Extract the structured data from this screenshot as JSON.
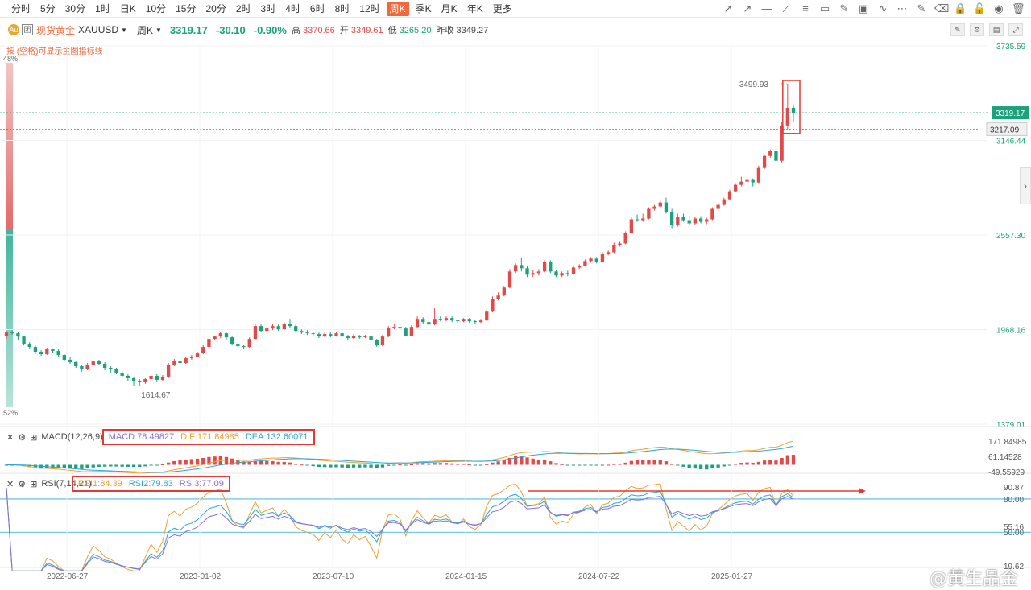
{
  "toolbar": {
    "timeframes": [
      "分时",
      "5分",
      "30分",
      "1时",
      "日K",
      "10分",
      "15分",
      "20分",
      "2时",
      "3时",
      "4时",
      "6时",
      "8时",
      "12时",
      "周K",
      "季K",
      "月K",
      "年K",
      "更多"
    ],
    "active_index": 14,
    "tools": [
      "trend-line-icon",
      "ray-icon",
      "horizontal-line-icon",
      "parallel-icon",
      "fib-icon",
      "channel-icon",
      "brush-icon",
      "image-icon",
      "compare-icon",
      "more-tools-icon",
      "edit-icon",
      "eraser-icon",
      "lock-icon",
      "unlock-icon",
      "eye-icon",
      "trash-icon"
    ]
  },
  "header": {
    "symbol_name": "现货黄金",
    "symbol_code": "XAUUSD",
    "period": "周K",
    "price": "3319.17",
    "change": "-30.10",
    "change_pct": "-0.90%",
    "high_label": "高",
    "high": "3370.66",
    "open_label": "开",
    "open": "3349.61",
    "low_label": "低",
    "low": "3265.20",
    "prev_label": "昨收",
    "prev": "3349.27",
    "hint": "按 (空格)可显示主图指标线",
    "pct_top": "48%",
    "pct_bottom": "52%"
  },
  "colors": {
    "up": "#e24a4a",
    "down": "#1aa37a",
    "accent": "#f1683a"
  },
  "chart_data": {
    "type": "candlestick",
    "x_ticks": [
      "2022-06-27",
      "2023-01-02",
      "2023-07-10",
      "2024-01-15",
      "2024-07-22",
      "2025-01-27"
    ],
    "y_ticks": [
      "3735.59",
      "3146.44",
      "2557.30",
      "1968.16",
      "1379.01"
    ],
    "ylim": [
      1379.01,
      3735.59
    ],
    "current_price": "3319.17",
    "crosshair_price": "3217.09",
    "max_label": "3499.93",
    "min_label": "1614.67",
    "candles": [
      [
        1930,
        1950,
        1910,
        1960
      ],
      [
        1950,
        1945,
        1935,
        1965
      ],
      [
        1945,
        1925,
        1905,
        1955
      ],
      [
        1925,
        1880,
        1870,
        1930
      ],
      [
        1880,
        1860,
        1845,
        1890
      ],
      [
        1860,
        1830,
        1815,
        1870
      ],
      [
        1830,
        1815,
        1805,
        1840
      ],
      [
        1815,
        1845,
        1810,
        1855
      ],
      [
        1845,
        1835,
        1825,
        1850
      ],
      [
        1835,
        1810,
        1800,
        1845
      ],
      [
        1810,
        1780,
        1770,
        1815
      ],
      [
        1780,
        1765,
        1755,
        1795
      ],
      [
        1765,
        1740,
        1730,
        1770
      ],
      [
        1740,
        1720,
        1705,
        1750
      ],
      [
        1720,
        1750,
        1715,
        1760
      ],
      [
        1750,
        1770,
        1745,
        1775
      ],
      [
        1770,
        1755,
        1745,
        1780
      ],
      [
        1755,
        1730,
        1715,
        1765
      ],
      [
        1730,
        1720,
        1700,
        1740
      ],
      [
        1720,
        1700,
        1690,
        1730
      ],
      [
        1700,
        1680,
        1670,
        1710
      ],
      [
        1680,
        1665,
        1650,
        1690
      ],
      [
        1665,
        1650,
        1620,
        1675
      ],
      [
        1650,
        1640,
        1615,
        1660
      ],
      [
        1640,
        1660,
        1630,
        1670
      ],
      [
        1660,
        1680,
        1650,
        1690
      ],
      [
        1680,
        1655,
        1640,
        1690
      ],
      [
        1655,
        1675,
        1650,
        1685
      ],
      [
        1675,
        1750,
        1670,
        1760
      ],
      [
        1750,
        1770,
        1740,
        1785
      ],
      [
        1770,
        1760,
        1745,
        1780
      ],
      [
        1760,
        1790,
        1755,
        1800
      ],
      [
        1790,
        1800,
        1780,
        1810
      ],
      [
        1800,
        1820,
        1795,
        1830
      ],
      [
        1820,
        1860,
        1815,
        1870
      ],
      [
        1860,
        1910,
        1850,
        1920
      ],
      [
        1910,
        1925,
        1900,
        1930
      ],
      [
        1925,
        1945,
        1915,
        1955
      ],
      [
        1945,
        1920,
        1905,
        1950
      ],
      [
        1920,
        1880,
        1870,
        1925
      ],
      [
        1880,
        1865,
        1855,
        1890
      ],
      [
        1865,
        1860,
        1845,
        1875
      ],
      [
        1860,
        1910,
        1855,
        1920
      ],
      [
        1910,
        1990,
        1905,
        2000
      ],
      [
        1990,
        1960,
        1950,
        2000
      ],
      [
        1960,
        1975,
        1955,
        1985
      ],
      [
        1975,
        1990,
        1965,
        2005
      ],
      [
        1990,
        1970,
        1960,
        2000
      ],
      [
        1970,
        2005,
        1965,
        2015
      ],
      [
        2005,
        1990,
        1975,
        2035
      ],
      [
        1990,
        1960,
        1955,
        2000
      ],
      [
        1960,
        1950,
        1940,
        1970
      ],
      [
        1950,
        1945,
        1935,
        1965
      ],
      [
        1945,
        1940,
        1930,
        1955
      ],
      [
        1940,
        1925,
        1915,
        1950
      ],
      [
        1925,
        1940,
        1920,
        1950
      ],
      [
        1940,
        1930,
        1920,
        1955
      ],
      [
        1930,
        1945,
        1925,
        1955
      ],
      [
        1945,
        1925,
        1920,
        1950
      ],
      [
        1925,
        1915,
        1900,
        1935
      ],
      [
        1915,
        1930,
        1910,
        1940
      ],
      [
        1930,
        1920,
        1910,
        1935
      ],
      [
        1920,
        1925,
        1915,
        1935
      ],
      [
        1925,
        1905,
        1890,
        1930
      ],
      [
        1905,
        1870,
        1860,
        1910
      ],
      [
        1870,
        1925,
        1865,
        1935
      ],
      [
        1925,
        1980,
        1920,
        1990
      ],
      [
        1980,
        1985,
        1970,
        2005
      ],
      [
        1985,
        1975,
        1965,
        1995
      ],
      [
        1975,
        1930,
        1925,
        1985
      ],
      [
        1930,
        1985,
        1925,
        1995
      ],
      [
        1985,
        2035,
        1980,
        2050
      ],
      [
        2035,
        2015,
        2005,
        2045
      ],
      [
        2015,
        2000,
        1990,
        2025
      ],
      [
        2000,
        2035,
        1995,
        2100
      ],
      [
        2035,
        2030,
        2020,
        2050
      ],
      [
        2030,
        2040,
        2020,
        2050
      ],
      [
        2040,
        2025,
        2015,
        2050
      ],
      [
        2025,
        2020,
        2010,
        2030
      ],
      [
        2020,
        2035,
        2015,
        2040
      ],
      [
        2035,
        2020,
        2010,
        2040
      ],
      [
        2020,
        2015,
        2005,
        2030
      ],
      [
        2015,
        2025,
        2010,
        2035
      ],
      [
        2025,
        2085,
        2020,
        2095
      ],
      [
        2085,
        2160,
        2080,
        2175
      ],
      [
        2160,
        2180,
        2150,
        2200
      ],
      [
        2180,
        2230,
        2175,
        2240
      ],
      [
        2230,
        2330,
        2225,
        2345
      ],
      [
        2330,
        2370,
        2320,
        2380
      ],
      [
        2370,
        2350,
        2330,
        2415
      ],
      [
        2350,
        2310,
        2295,
        2365
      ],
      [
        2310,
        2320,
        2295,
        2340
      ],
      [
        2320,
        2330,
        2305,
        2345
      ],
      [
        2330,
        2390,
        2325,
        2400
      ],
      [
        2390,
        2330,
        2320,
        2400
      ],
      [
        2330,
        2305,
        2295,
        2340
      ],
      [
        2305,
        2320,
        2295,
        2330
      ],
      [
        2320,
        2315,
        2300,
        2335
      ],
      [
        2315,
        2355,
        2310,
        2365
      ],
      [
        2355,
        2365,
        2345,
        2375
      ],
      [
        2365,
        2395,
        2360,
        2405
      ],
      [
        2395,
        2410,
        2385,
        2420
      ],
      [
        2410,
        2390,
        2380,
        2420
      ],
      [
        2390,
        2440,
        2385,
        2450
      ],
      [
        2440,
        2450,
        2430,
        2460
      ],
      [
        2450,
        2495,
        2445,
        2510
      ],
      [
        2495,
        2505,
        2485,
        2515
      ],
      [
        2505,
        2570,
        2500,
        2580
      ],
      [
        2570,
        2655,
        2565,
        2670
      ],
      [
        2655,
        2650,
        2640,
        2685
      ],
      [
        2650,
        2660,
        2640,
        2690
      ],
      [
        2660,
        2720,
        2655,
        2730
      ],
      [
        2720,
        2735,
        2710,
        2745
      ],
      [
        2735,
        2760,
        2725,
        2770
      ],
      [
        2760,
        2700,
        2690,
        2790
      ],
      [
        2700,
        2620,
        2600,
        2720
      ],
      [
        2620,
        2670,
        2610,
        2690
      ],
      [
        2670,
        2650,
        2640,
        2690
      ],
      [
        2650,
        2630,
        2620,
        2680
      ],
      [
        2630,
        2660,
        2620,
        2670
      ],
      [
        2660,
        2640,
        2630,
        2675
      ],
      [
        2640,
        2655,
        2625,
        2665
      ],
      [
        2655,
        2720,
        2650,
        2730
      ],
      [
        2720,
        2745,
        2710,
        2760
      ],
      [
        2745,
        2780,
        2740,
        2790
      ],
      [
        2780,
        2830,
        2775,
        2840
      ],
      [
        2830,
        2870,
        2825,
        2880
      ],
      [
        2870,
        2890,
        2860,
        2920
      ],
      [
        2890,
        2900,
        2870,
        2940
      ],
      [
        2900,
        2885,
        2860,
        2910
      ],
      [
        2885,
        2975,
        2880,
        2990
      ],
      [
        2975,
        3050,
        2970,
        3060
      ],
      [
        3050,
        3080,
        3040,
        3090
      ],
      [
        3080,
        3020,
        3000,
        3130
      ],
      [
        3020,
        3240,
        3010,
        3260
      ],
      [
        3240,
        3350,
        3220,
        3500
      ],
      [
        3350,
        3319.17,
        3265.2,
        3370.66
      ]
    ],
    "macd": {
      "label": "MACD(12,26,9)",
      "MACD": "78.49827",
      "DIF": "171.84985",
      "DEA": "132.60071",
      "y_ticks": [
        "171.84985",
        "61.14528",
        "-49.55929"
      ]
    },
    "rsi": {
      "label": "RSI(7,14,21)",
      "RSI1": "84.39",
      "RSI2": "79.83",
      "RSI3": "77.09",
      "y_ticks": [
        "90.87",
        "80.00",
        "55.16",
        "50.00",
        "19.62"
      ]
    }
  },
  "indicator_labels": {
    "macd_title": "MACD(12,26,9)",
    "macd_v": "MACD:78.49827",
    "dif_v": "DIF:171.84985",
    "dea_v": "DEA:132.60071",
    "rsi_title": "RSI(7,14,21)",
    "rsi1": "RSI1:84.39",
    "rsi2": "RSI2:79.83",
    "rsi3": "RSI3:77.09"
  },
  "watermark": "@黄生品金"
}
